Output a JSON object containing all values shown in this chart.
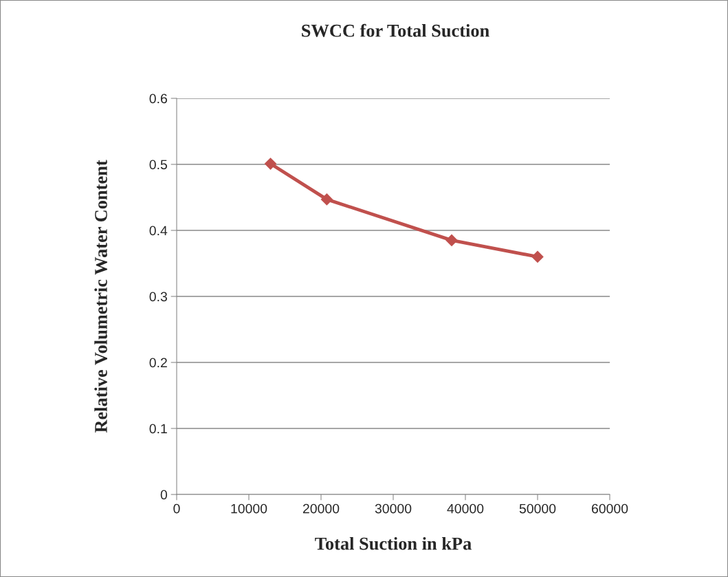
{
  "chart_data": {
    "type": "line",
    "title": "SWCC for Total Suction",
    "xlabel": "Total Suction in kPa",
    "ylabel": "Relative Volumetric Water Content",
    "x": [
      13000,
      20800,
      38100,
      50000
    ],
    "series": [
      {
        "color": "#c0504d",
        "values": [
          0.501,
          0.447,
          0.385,
          0.36
        ]
      }
    ],
    "xlim": [
      0,
      60000
    ],
    "xticks": [
      0,
      10000,
      20000,
      30000,
      40000,
      50000,
      60000
    ],
    "ylim": [
      0,
      0.6
    ],
    "yticks": [
      0,
      0.1,
      0.2,
      0.3,
      0.4,
      0.5,
      0.6
    ],
    "grid": "y",
    "marker": "diamond",
    "line_style": "solid"
  }
}
